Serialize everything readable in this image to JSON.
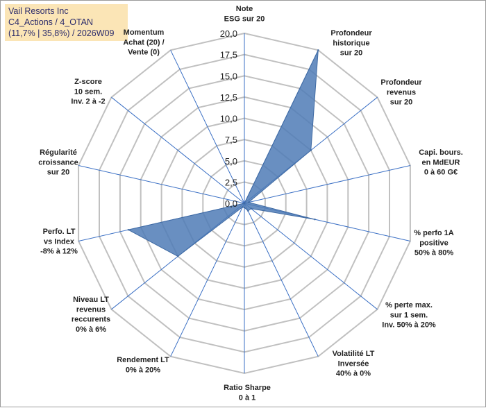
{
  "header": {
    "line1": "Vail Resorts Inc",
    "line2": "C4_Actions / 4_OTAN",
    "line3": "(11,7% | 35,8%) / 2026W09"
  },
  "chart_data": {
    "type": "radar",
    "title": "Vail Resorts Inc",
    "rmin": 0,
    "rmax": 20,
    "tick_step": 2.5,
    "tick_labels": [
      "0,0",
      "2,5",
      "5,0",
      "7,5",
      "10,0",
      "12,5",
      "15,0",
      "17,5",
      "20,0"
    ],
    "axes": [
      {
        "lines": [
          "Note",
          "ESG sur 20"
        ],
        "value": 0
      },
      {
        "lines": [
          "Profondeur",
          "historique",
          "sur 20"
        ],
        "value": 20
      },
      {
        "lines": [
          "Profondeur",
          "revenus",
          "sur 20"
        ],
        "value": 10
      },
      {
        "lines": [
          "Capi. bours.",
          "en MdEUR",
          "0 à 60 G€"
        ],
        "value": 0.5
      },
      {
        "lines": [
          "% perfo 1A",
          "positive",
          "50% à 80%"
        ],
        "value": 8.5
      },
      {
        "lines": [
          "% perte max.",
          "sur 1 sem.",
          "Inv. 50% à 20%"
        ],
        "value": 1
      },
      {
        "lines": [
          "Volatilité LT",
          "Inversée",
          "40% à 0%"
        ],
        "value": 1
      },
      {
        "lines": [
          "Ratio Sharpe",
          "0 à 1"
        ],
        "value": 0.5
      },
      {
        "lines": [
          "Rendement LT",
          "0% à 20%"
        ],
        "value": 0.5
      },
      {
        "lines": [
          "Niveau LT",
          "revenus",
          "reccurents",
          "0% à 6%"
        ],
        "value": 10
      },
      {
        "lines": [
          "Perfo. LT",
          "vs Index",
          "-8% à 12%"
        ],
        "value": 14
      },
      {
        "lines": [
          "Régularité",
          "croissance",
          "sur 20"
        ],
        "value": 0
      },
      {
        "lines": [
          "Z-score",
          "10 sem.",
          "Inv. 2 à -2"
        ],
        "value": 0
      },
      {
        "lines": [
          "Momentum",
          "Achat (20) /",
          "Vente (0)"
        ],
        "value": 0
      }
    ],
    "colors": {
      "fill": "#4f7bb6",
      "stroke": "#3f6aa3",
      "grid": "#c0c0c0",
      "spoke": "#3a6fc4"
    }
  }
}
